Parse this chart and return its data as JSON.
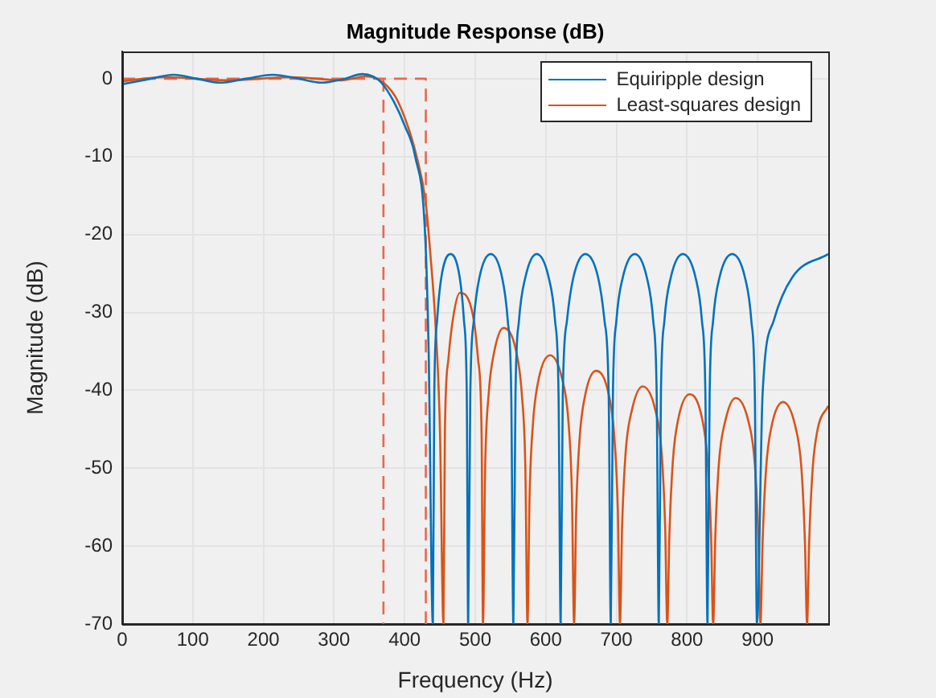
{
  "chart_data": {
    "type": "line",
    "title": "Magnitude Response (dB)",
    "xlabel": "Frequency (Hz)",
    "ylabel": "Magnitude (dB)",
    "xlim": [
      0,
      1000
    ],
    "xticks": [
      0,
      100,
      200,
      300,
      400,
      500,
      600,
      700,
      800,
      900
    ],
    "ylim": [
      -70,
      3.5
    ],
    "yticks": [
      -70,
      -60,
      -50,
      -40,
      -30,
      -20,
      -10,
      0
    ],
    "grid": true,
    "legend": "top right",
    "marker": "none",
    "series": [
      {
        "name": "Equiripple design",
        "color": "#0072bd",
        "x": [
          0,
          35,
          73,
          105,
          139,
          175,
          213,
          250,
          282,
          315,
          340,
          355,
          367,
          385,
          400,
          415,
          429,
          434,
          440,
          442,
          446,
          452,
          465,
          478,
          484,
          488,
          490,
          493,
          498,
          506,
          522,
          538,
          546,
          551,
          554,
          557,
          562,
          571,
          587,
          604,
          613,
          618,
          621,
          624,
          630,
          639,
          656,
          674,
          683,
          689,
          692,
          695,
          700,
          709,
          726,
          743,
          752,
          757,
          760,
          763,
          768,
          777,
          794,
          812,
          821,
          826,
          829,
          832,
          837,
          846,
          864,
          882,
          891,
          896,
          899,
          907,
          923,
          949,
          1000
        ],
        "values": [
          -0.7,
          -0.1,
          0.5,
          0,
          -0.5,
          0,
          0.5,
          0,
          -0.5,
          0,
          0.6,
          0.3,
          -0.5,
          -3,
          -6,
          -10,
          -20,
          -35,
          -70,
          -40.5,
          -31,
          -25.5,
          -22.5,
          -25.5,
          -31,
          -40.5,
          -70,
          -40.5,
          -31,
          -25.5,
          -22.5,
          -25.5,
          -31,
          -40.5,
          -70,
          -40.5,
          -31,
          -25.5,
          -22.5,
          -25.5,
          -31,
          -40.5,
          -70,
          -40.5,
          -31,
          -25.5,
          -22.5,
          -25.5,
          -31,
          -40.5,
          -70,
          -40.5,
          -31,
          -25.5,
          -22.5,
          -25.5,
          -31,
          -40.5,
          -70,
          -40.5,
          -31,
          -25.5,
          -22.5,
          -25.5,
          -31,
          -40.5,
          -70,
          -40.5,
          -31,
          -25.5,
          -22.5,
          -25.5,
          -31,
          -40.5,
          -70,
          -40.5,
          -31,
          -25.5,
          -22.5
        ]
      },
      {
        "name": "Least-squares design",
        "color": "#d95319",
        "x": [
          0,
          60,
          150,
          240,
          310,
          345,
          370,
          391,
          417,
          430,
          436,
          444,
          450,
          455,
          457,
          462,
          469,
          478,
          497,
          504,
          509,
          511,
          514,
          519,
          527,
          540,
          558,
          566,
          571,
          574,
          577,
          582,
          590,
          606,
          623,
          632,
          637,
          640,
          643,
          648,
          656,
          671,
          689,
          697,
          702,
          705,
          708,
          713,
          722,
          737,
          755,
          764,
          769,
          772,
          775,
          780,
          788,
          804,
          821,
          829,
          834,
          837,
          840,
          845,
          854,
          869,
          887,
          896,
          901,
          904,
          907,
          912,
          920,
          936,
          953,
          962,
          967,
          970,
          973,
          978,
          985,
          1000
        ],
        "values": [
          -0.3,
          0.2,
          -0.2,
          0.2,
          -0.2,
          0.3,
          -0.5,
          -3,
          -10,
          -16,
          -22,
          -32,
          -45,
          -70,
          -45.5,
          -36,
          -30.5,
          -27.5,
          -30.5,
          -36,
          -45.5,
          -70,
          -50,
          -40.5,
          -35,
          -32,
          -35,
          -40.5,
          -50,
          -70,
          -53.5,
          -44,
          -38.5,
          -35.5,
          -38.5,
          -44,
          -53.5,
          -70,
          -55.5,
          -46,
          -40.5,
          -37.5,
          -40.5,
          -46,
          -55.5,
          -70,
          -57.5,
          -48,
          -42.5,
          -39.5,
          -42.5,
          -48,
          -57.5,
          -70,
          -58.5,
          -49,
          -43.5,
          -40.5,
          -43.5,
          -49,
          -58.5,
          -70,
          -59,
          -49.5,
          -44,
          -41,
          -44,
          -49.5,
          -59,
          -70,
          -59.5,
          -50,
          -44.5,
          -41.5,
          -44.5,
          -50,
          -59.5,
          -70,
          -59.5,
          -50,
          -45,
          -42
        ]
      },
      {
        "color": "#e9674d",
        "line_style": "dashed",
        "x": [
          0,
          430,
          430
        ],
        "values": [
          0,
          0,
          -70
        ]
      },
      {
        "color": "#e9674d",
        "line_style": "dashed",
        "x": [
          370,
          370
        ],
        "values": [
          0,
          -70
        ]
      }
    ]
  }
}
